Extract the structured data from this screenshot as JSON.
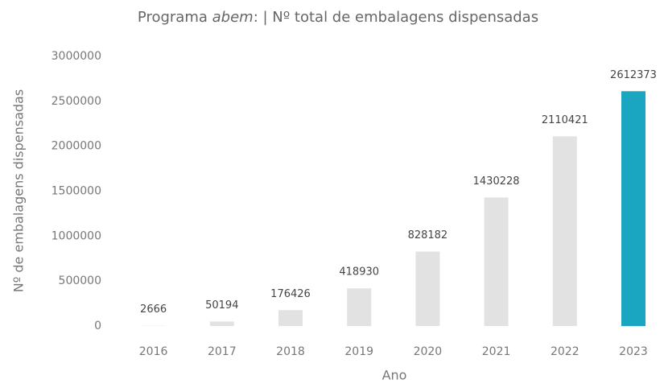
{
  "chart_data": {
    "type": "bar",
    "title": [
      "Programa ",
      "abem",
      ": | Nº total de embalagens dispensadas"
    ],
    "x_label": "Ano",
    "y_label": "Nº de embalagens dispensadas",
    "categories": [
      "2016",
      "2017",
      "2018",
      "2019",
      "2020",
      "2021",
      "2022",
      "2023"
    ],
    "values": [
      2666,
      50194,
      176426,
      418930,
      828182,
      1430228,
      2110421,
      2612373
    ],
    "colors": [
      "#e2e2e2",
      "#e2e2e2",
      "#e2e2e2",
      "#e2e2e2",
      "#e2e2e2",
      "#e2e2e2",
      "#e2e2e2",
      "#1aa6c0"
    ],
    "ylim": [
      0,
      3000000
    ],
    "yticks": [
      0,
      500000,
      1000000,
      1500000,
      2000000,
      2500000,
      3000000
    ],
    "grid": false
  }
}
